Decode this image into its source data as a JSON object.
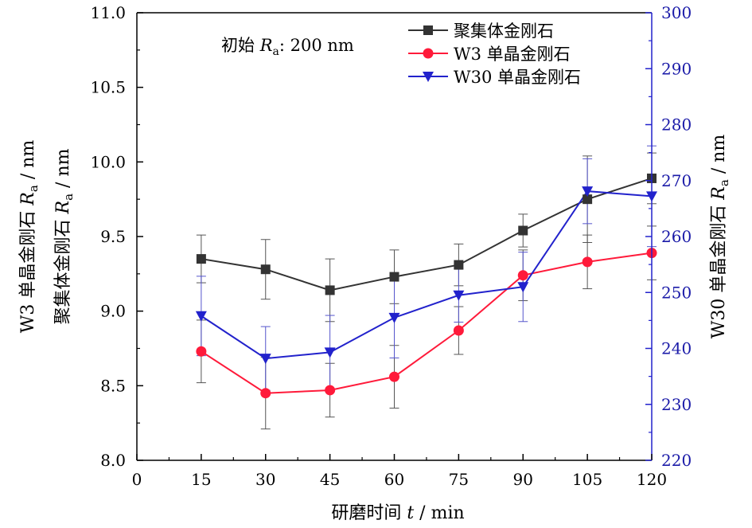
{
  "chart_data": {
    "type": "line",
    "annotation": {
      "prefix": "初始 ",
      "symbol": "R",
      "subscript": "a",
      "suffix": ": 200 nm"
    },
    "x": [
      15,
      30,
      45,
      60,
      75,
      90,
      105,
      120
    ],
    "xlim": [
      0,
      120
    ],
    "x_ticks": [
      "0",
      "15",
      "30",
      "45",
      "60",
      "75",
      "90",
      "105",
      "120"
    ],
    "xlabel": {
      "prefix": "研磨时间 ",
      "var": "t",
      "suffix": " / min"
    },
    "ylim_left": [
      8.0,
      11.0
    ],
    "y_ticks_left": [
      "8.0",
      "8.5",
      "9.0",
      "9.5",
      "10.0",
      "10.5",
      "11.0"
    ],
    "ylabel_left": [
      {
        "prefix": "W3 单晶金刚石 ",
        "var": "R",
        "sub": "a",
        "suffix": " / nm"
      },
      {
        "prefix": "聚集体金刚石 ",
        "var": "R",
        "sub": "a",
        "suffix": " / nm"
      }
    ],
    "ylim_right": [
      220,
      300
    ],
    "y_ticks_right": [
      "220",
      "230",
      "240",
      "250",
      "260",
      "270",
      "280",
      "290",
      "300"
    ],
    "ylabel_right": {
      "prefix": "W30 单晶金刚石 ",
      "var": "R",
      "sub": "a",
      "suffix": " / nm"
    },
    "legend_position": "top-right",
    "series": [
      {
        "name": "聚集体金刚石",
        "axis": "left",
        "color": "#333333",
        "marker": "square",
        "values": [
          9.35,
          9.28,
          9.14,
          9.23,
          9.31,
          9.54,
          9.75,
          9.89
        ],
        "err": [
          0.16,
          0.2,
          0.21,
          0.18,
          0.14,
          0.11,
          0.29,
          0.17
        ]
      },
      {
        "name": "W3 单晶金刚石",
        "axis": "left",
        "color": "#ff1a3a",
        "marker": "circle",
        "values": [
          8.73,
          8.45,
          8.47,
          8.56,
          8.87,
          9.24,
          9.33,
          9.39
        ],
        "err": [
          0.21,
          0.24,
          0.18,
          0.21,
          0.16,
          0.17,
          0.18,
          0.18
        ]
      },
      {
        "name": "W30 单晶金刚石",
        "axis": "right",
        "color": "#2222cc",
        "marker": "triangle-down",
        "values": [
          245.8,
          238.2,
          239.3,
          245.5,
          249.5,
          251.0,
          268.1,
          267.2
        ],
        "err": [
          7.1,
          5.7,
          6.6,
          7.2,
          4.8,
          6.2,
          5.8,
          9.0
        ]
      }
    ]
  }
}
